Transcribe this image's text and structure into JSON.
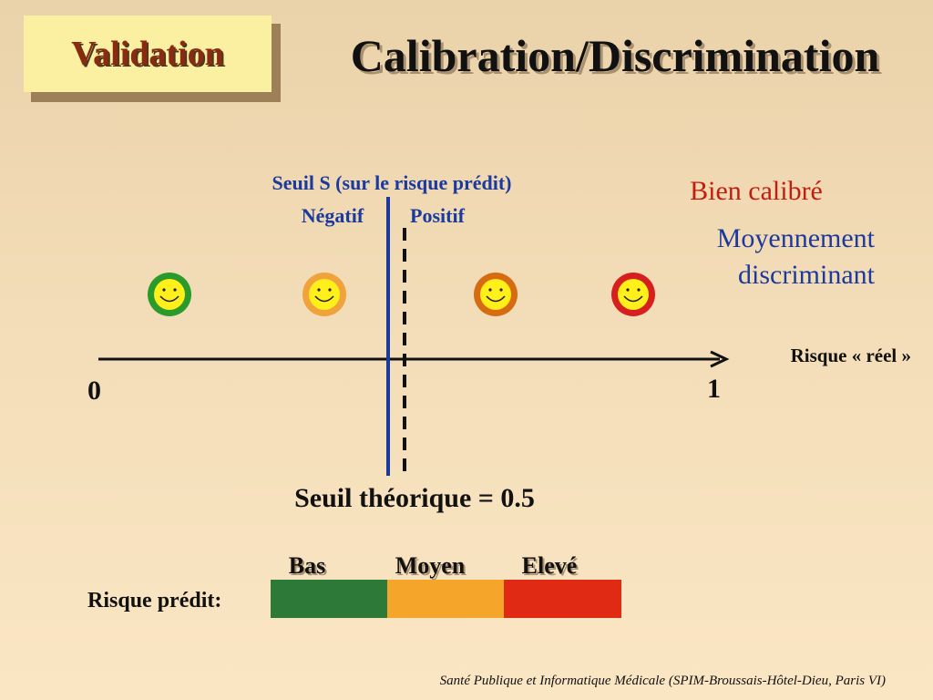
{
  "tag": "Validation",
  "title": "Calibration/Discrimination",
  "threshold": {
    "label": "Seuil S (sur le risque prédit)",
    "negative": "Négatif",
    "positive": "Positif"
  },
  "status": {
    "calibration": "Bien calibré",
    "discrimination_line1": "Moyennement",
    "discrimination_line2": "discriminant"
  },
  "axis": {
    "label": "Risque « réel »",
    "min": "0",
    "max": "1"
  },
  "faces": [
    {
      "name": "smiley-green",
      "ring": "#2a9a2a"
    },
    {
      "name": "smiley-orange",
      "ring": "#f0a33a"
    },
    {
      "name": "smiley-dark-orange",
      "ring": "#d66b12"
    },
    {
      "name": "smiley-red",
      "ring": "#d62020"
    }
  ],
  "theoretical_threshold": "Seuil théorique = 0.5",
  "predicted_risk": {
    "label": "Risque prédit:",
    "categories": [
      {
        "label": "Bas",
        "color": "#2d7a38"
      },
      {
        "label": "Moyen",
        "color": "#f5a52a"
      },
      {
        "label": "Elevé",
        "color": "#e02a14"
      }
    ]
  },
  "colors": {
    "threshold_line": "#1b3a9e",
    "face_fill": "#ffef1a"
  },
  "footer": "Santé Publique et Informatique Médicale (SPIM-Broussais-Hôtel-Dieu, Paris VI)"
}
